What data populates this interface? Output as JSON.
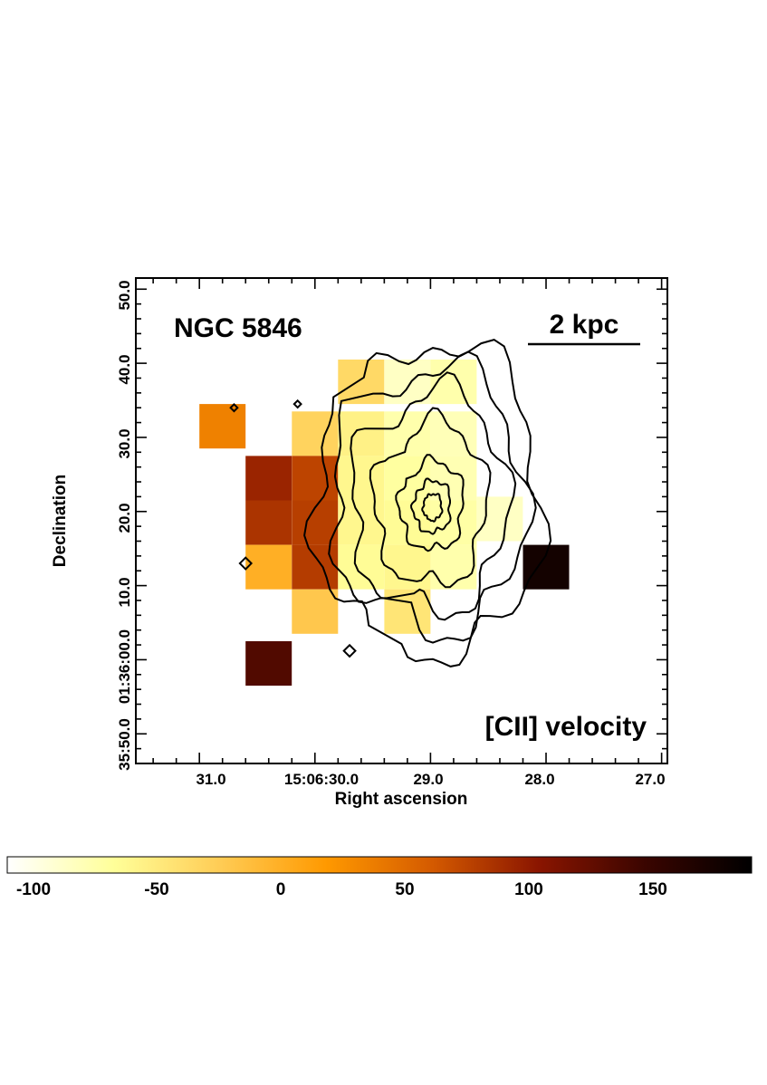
{
  "chart_data": {
    "type": "heatmap",
    "title": "NGC 5846",
    "map_label": "[CII] velocity",
    "scale_bar_label": "2 kpc",
    "xlabel": "Right ascension",
    "ylabel": "Declination",
    "x_ticks": [
      "31.0",
      "15:06:30.0",
      "29.0",
      "28.0",
      "27.0"
    ],
    "x_tick_seconds": [
      31.0,
      30.0,
      29.0,
      28.0,
      27.0
    ],
    "y_ticks": [
      "35:50.0",
      "01:36:00.0",
      "10.0",
      "20.0",
      "30.0",
      "40.0",
      "50.0"
    ],
    "y_tick_arcsec": [
      -10,
      0,
      10,
      20,
      30,
      40,
      50
    ],
    "xlim_seconds": [
      31.55,
      26.95
    ],
    "ylim_arcsec": [
      -14,
      51.5
    ],
    "colorbar": {
      "range": [
        -110,
        190
      ],
      "ticks": [
        "-100",
        "-50",
        "0",
        "50",
        "100",
        "150"
      ],
      "tick_values": [
        -100,
        -50,
        0,
        50,
        100,
        150
      ],
      "colormap": [
        "#ffffff",
        "#ffff99",
        "#ffcc55",
        "#ff9900",
        "#d45a00",
        "#8a1500",
        "#3a0500",
        "#000000"
      ]
    },
    "pixels": [
      {
        "ra": 30.8,
        "dec": 31.5,
        "value": 35
      },
      {
        "ra": 30.4,
        "dec": 24.5,
        "value": 95
      },
      {
        "ra": 30.4,
        "dec": 18.5,
        "value": 85
      },
      {
        "ra": 30.4,
        "dec": 12.5,
        "value": 0
      },
      {
        "ra": 30.4,
        "dec": -0.5,
        "value": 135
      },
      {
        "ra": 30.0,
        "dec": 30.5,
        "value": -30
      },
      {
        "ra": 30.0,
        "dec": 24.5,
        "value": 75
      },
      {
        "ra": 30.0,
        "dec": 18.5,
        "value": 78
      },
      {
        "ra": 30.0,
        "dec": 12.5,
        "value": 80
      },
      {
        "ra": 30.0,
        "dec": 6.5,
        "value": -20
      },
      {
        "ra": 29.6,
        "dec": 37.5,
        "value": -35
      },
      {
        "ra": 29.6,
        "dec": 30.5,
        "value": -55
      },
      {
        "ra": 29.6,
        "dec": 24.5,
        "value": -60
      },
      {
        "ra": 29.6,
        "dec": 18.5,
        "value": -60
      },
      {
        "ra": 29.6,
        "dec": 12.5,
        "value": -65
      },
      {
        "ra": 29.2,
        "dec": 37.5,
        "value": -85
      },
      {
        "ra": 29.2,
        "dec": 30.5,
        "value": -75
      },
      {
        "ra": 29.2,
        "dec": 24.5,
        "value": -70
      },
      {
        "ra": 29.2,
        "dec": 18.5,
        "value": -65
      },
      {
        "ra": 29.2,
        "dec": 12.5,
        "value": -60
      },
      {
        "ra": 29.2,
        "dec": 6.5,
        "value": -45
      },
      {
        "ra": 28.8,
        "dec": 37.5,
        "value": -75
      },
      {
        "ra": 28.8,
        "dec": 30.5,
        "value": -80
      },
      {
        "ra": 28.8,
        "dec": 24.5,
        "value": -78
      },
      {
        "ra": 28.8,
        "dec": 18.5,
        "value": -72
      },
      {
        "ra": 28.8,
        "dec": 12.5,
        "value": -75
      },
      {
        "ra": 28.4,
        "dec": 19.0,
        "value": -85
      },
      {
        "ra": 28.0,
        "dec": 12.5,
        "value": 175
      }
    ],
    "contours": {
      "center": {
        "ra": 28.98,
        "dec": 20.5
      },
      "levels": [
        {
          "rx": 0.85,
          "ry": 21
        },
        {
          "rx": 0.72,
          "ry": 18
        },
        {
          "rx": 0.58,
          "ry": 15
        },
        {
          "rx": 0.42,
          "ry": 11
        },
        {
          "rx": 0.24,
          "ry": 6
        },
        {
          "rx": 0.14,
          "ry": 3.5
        },
        {
          "rx": 0.07,
          "ry": 1.8
        }
      ],
      "islands": [
        {
          "ra": 30.6,
          "dec": 13.0,
          "r": 0.05
        },
        {
          "ra": 29.7,
          "dec": 1.2,
          "r": 0.05
        },
        {
          "ra": 30.15,
          "dec": 34.5,
          "r": 0.03
        },
        {
          "ra": 30.7,
          "dec": 34.0,
          "r": 0.03
        }
      ]
    }
  }
}
